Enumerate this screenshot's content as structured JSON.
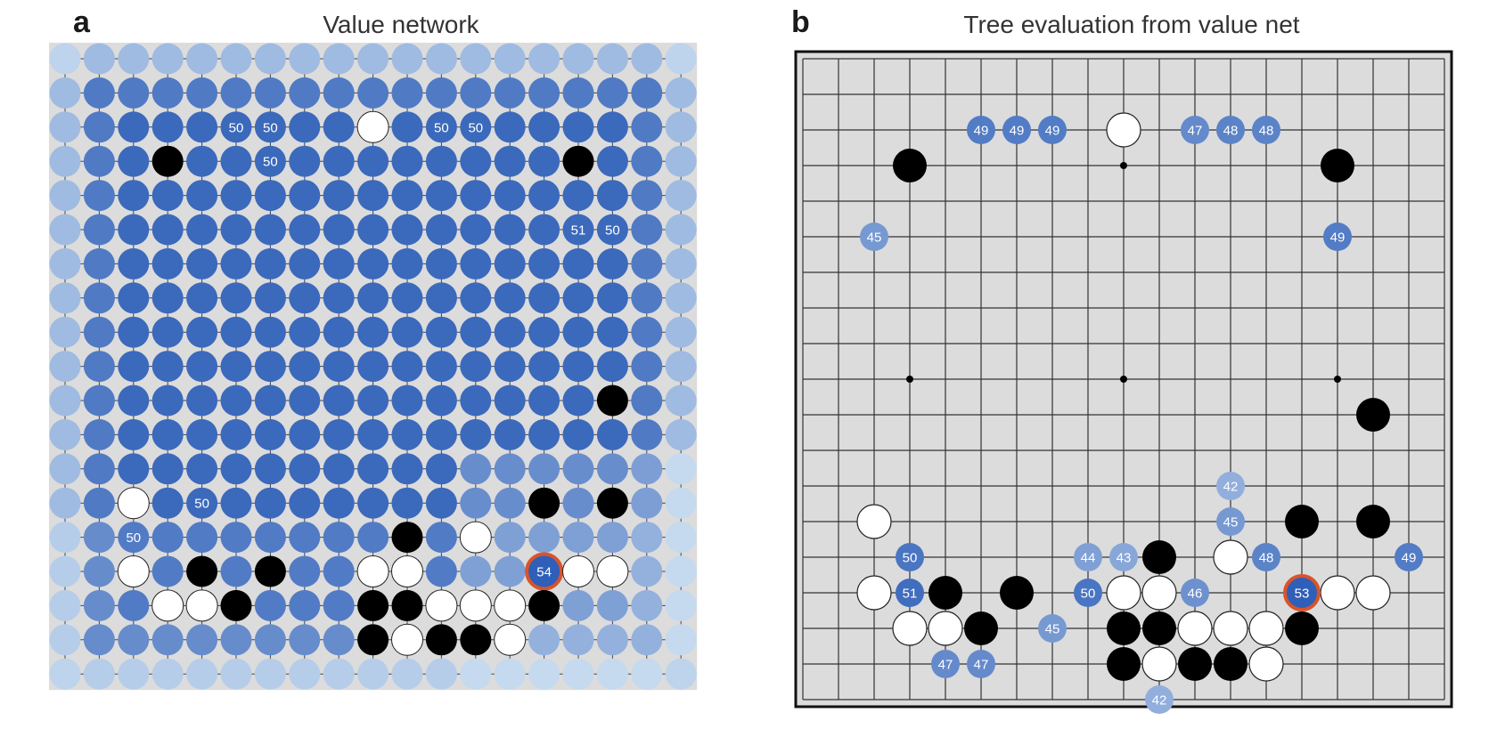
{
  "panel_a": {
    "letter": "a",
    "title": "Value network",
    "labeled_points": [
      {
        "row": 2,
        "col": 5,
        "value": "50"
      },
      {
        "row": 2,
        "col": 6,
        "value": "50"
      },
      {
        "row": 2,
        "col": 11,
        "value": "50"
      },
      {
        "row": 2,
        "col": 12,
        "value": "50"
      },
      {
        "row": 3,
        "col": 6,
        "value": "50"
      },
      {
        "row": 5,
        "col": 15,
        "value": "51"
      },
      {
        "row": 5,
        "col": 16,
        "value": "50"
      },
      {
        "row": 13,
        "col": 4,
        "value": "50"
      },
      {
        "row": 14,
        "col": 2,
        "value": "50"
      },
      {
        "row": 15,
        "col": 14,
        "value": "54",
        "highlight": true
      }
    ]
  },
  "panel_b": {
    "letter": "b",
    "title": "Tree evaluation from value net",
    "labeled_points": [
      {
        "row": 2,
        "col": 5,
        "value": "49"
      },
      {
        "row": 2,
        "col": 6,
        "value": "49"
      },
      {
        "row": 2,
        "col": 7,
        "value": "49"
      },
      {
        "row": 2,
        "col": 11,
        "value": "47"
      },
      {
        "row": 2,
        "col": 12,
        "value": "48"
      },
      {
        "row": 2,
        "col": 13,
        "value": "48"
      },
      {
        "row": 5,
        "col": 2,
        "value": "45"
      },
      {
        "row": 5,
        "col": 15,
        "value": "49"
      },
      {
        "row": 12,
        "col": 12,
        "value": "42"
      },
      {
        "row": 13,
        "col": 12,
        "value": "45"
      },
      {
        "row": 14,
        "col": 3,
        "value": "50"
      },
      {
        "row": 14,
        "col": 8,
        "value": "44"
      },
      {
        "row": 14,
        "col": 9,
        "value": "43"
      },
      {
        "row": 14,
        "col": 13,
        "value": "48"
      },
      {
        "row": 14,
        "col": 17,
        "value": "49"
      },
      {
        "row": 15,
        "col": 3,
        "value": "51"
      },
      {
        "row": 15,
        "col": 8,
        "value": "50"
      },
      {
        "row": 15,
        "col": 11,
        "value": "46"
      },
      {
        "row": 15,
        "col": 14,
        "value": "53",
        "highlight": true
      },
      {
        "row": 16,
        "col": 7,
        "value": "45"
      },
      {
        "row": 17,
        "col": 4,
        "value": "47"
      },
      {
        "row": 17,
        "col": 5,
        "value": "47"
      },
      {
        "row": 18,
        "col": 10,
        "value": "42"
      }
    ]
  },
  "board_size": 19,
  "stones": {
    "black": [
      [
        3,
        3
      ],
      [
        3,
        15
      ],
      [
        10,
        16
      ],
      [
        13,
        14
      ],
      [
        13,
        16
      ],
      [
        14,
        10
      ],
      [
        15,
        4
      ],
      [
        15,
        6
      ],
      [
        16,
        5
      ],
      [
        16,
        9
      ],
      [
        16,
        10
      ],
      [
        16,
        14
      ],
      [
        17,
        9
      ],
      [
        17,
        11
      ],
      [
        17,
        12
      ]
    ],
    "white": [
      [
        2,
        9
      ],
      [
        13,
        2
      ],
      [
        14,
        12
      ],
      [
        15,
        2
      ],
      [
        15,
        9
      ],
      [
        15,
        10
      ],
      [
        15,
        15
      ],
      [
        15,
        16
      ],
      [
        16,
        3
      ],
      [
        16,
        4
      ],
      [
        16,
        11
      ],
      [
        16,
        12
      ],
      [
        16,
        13
      ],
      [
        17,
        10
      ],
      [
        17,
        13
      ]
    ]
  },
  "star_points": [
    [
      3,
      9
    ],
    [
      9,
      3
    ],
    [
      9,
      9
    ],
    [
      9,
      15
    ]
  ],
  "colors": {
    "highlight_ring": "#d9542a",
    "board_bg": "#dcdcdc",
    "value_scale": [
      "#c5d9ef",
      "#2f5fb8"
    ]
  }
}
